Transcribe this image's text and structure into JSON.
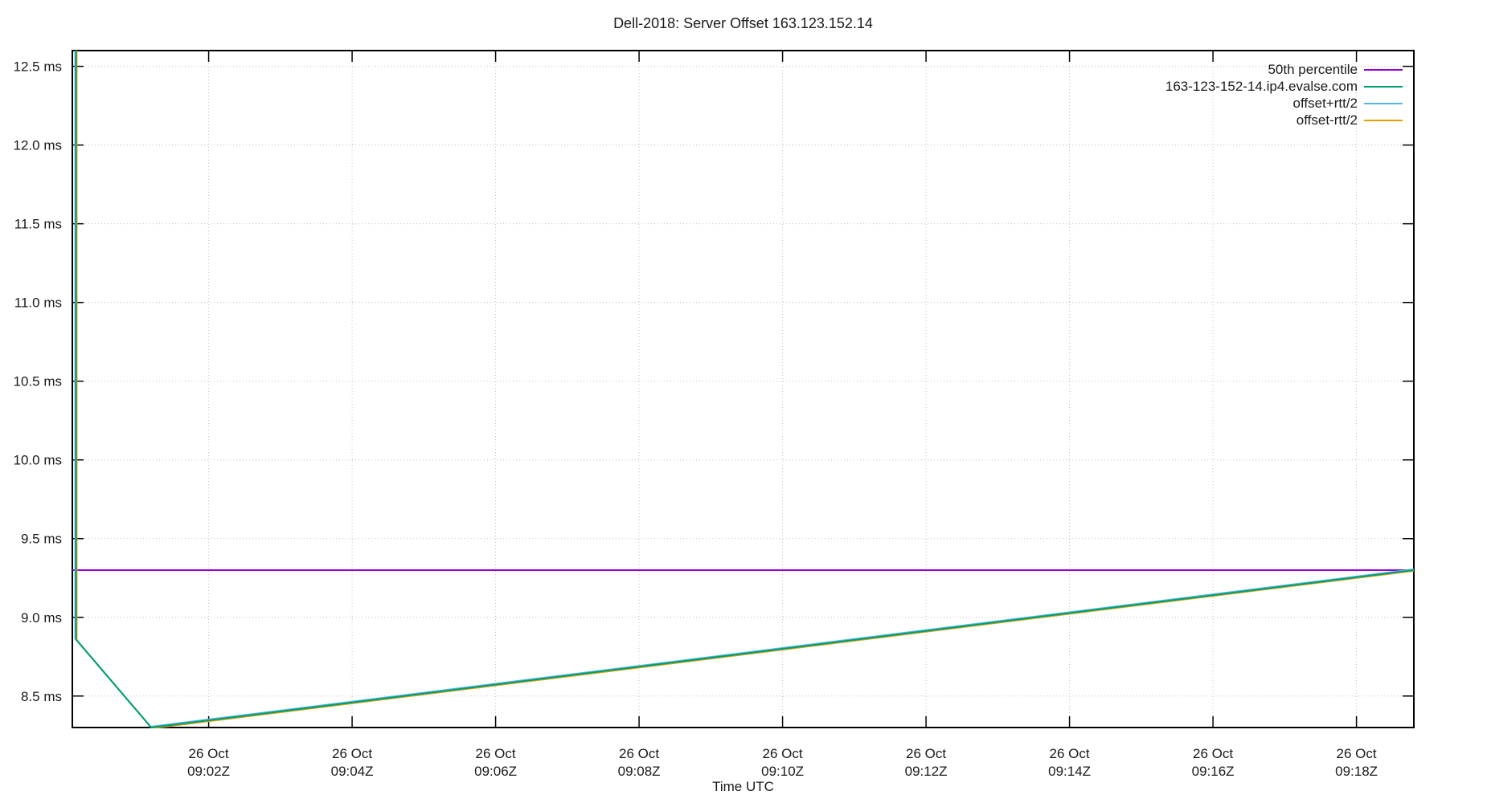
{
  "page": {
    "background_color": "#ffffff",
    "text_color": "#1a1a1a",
    "grid_color": "#bfbfbf",
    "border_color": "#000000"
  },
  "chart_data": {
    "type": "line",
    "title": "Dell-2018: Server Offset 163.123.152.14",
    "xlabel": "Time UTC",
    "x_axis_note": "x values are minutes after 09:00Z on 26 Oct",
    "xlim": [
      0.1,
      18.8
    ],
    "ylim": [
      8.3,
      12.6
    ],
    "grid": true,
    "legend_position": "top-right",
    "y_ticks": [
      {
        "value": 8.5,
        "label": "8.5 ms"
      },
      {
        "value": 9.0,
        "label": "9.0 ms"
      },
      {
        "value": 9.5,
        "label": "9.5 ms"
      },
      {
        "value": 10.0,
        "label": "10.0 ms"
      },
      {
        "value": 10.5,
        "label": "10.5 ms"
      },
      {
        "value": 11.0,
        "label": "11.0 ms"
      },
      {
        "value": 11.5,
        "label": "11.5 ms"
      },
      {
        "value": 12.0,
        "label": "12.0 ms"
      },
      {
        "value": 12.5,
        "label": "12.5 ms"
      }
    ],
    "x_ticks": [
      {
        "value": 2,
        "line1": "26 Oct",
        "line2": "09:02Z"
      },
      {
        "value": 4,
        "line1": "26 Oct",
        "line2": "09:04Z"
      },
      {
        "value": 6,
        "line1": "26 Oct",
        "line2": "09:06Z"
      },
      {
        "value": 8,
        "line1": "26 Oct",
        "line2": "09:08Z"
      },
      {
        "value": 10,
        "line1": "26 Oct",
        "line2": "09:10Z"
      },
      {
        "value": 12,
        "line1": "26 Oct",
        "line2": "09:12Z"
      },
      {
        "value": 14,
        "line1": "26 Oct",
        "line2": "09:14Z"
      },
      {
        "value": 16,
        "line1": "26 Oct",
        "line2": "09:16Z"
      },
      {
        "value": 18,
        "line1": "26 Oct",
        "line2": "09:18Z"
      }
    ],
    "series": [
      {
        "name": "50th percentile",
        "color": "#9400d3",
        "points": [
          [
            0.1,
            9.3
          ],
          [
            18.8,
            9.3
          ]
        ]
      },
      {
        "name": "163-123-152-14.ip4.evalse.com",
        "color": "#009e73",
        "points": [
          [
            0.15,
            12.6
          ],
          [
            0.15,
            8.86
          ],
          [
            1.2,
            8.3
          ],
          [
            18.8,
            9.3
          ]
        ]
      },
      {
        "name": "offset+rtt/2",
        "color": "#56b4e9",
        "points": [
          [
            0.14,
            12.6
          ],
          [
            0.14,
            8.865
          ],
          [
            1.19,
            8.305
          ],
          [
            18.8,
            9.305
          ]
        ]
      },
      {
        "name": "offset-rtt/2",
        "color": "#e69f00",
        "points": [
          [
            0.16,
            12.6
          ],
          [
            0.16,
            8.855
          ],
          [
            1.21,
            8.295
          ],
          [
            18.8,
            9.295
          ]
        ]
      }
    ],
    "draw_order": [
      0,
      3,
      2,
      1
    ]
  }
}
